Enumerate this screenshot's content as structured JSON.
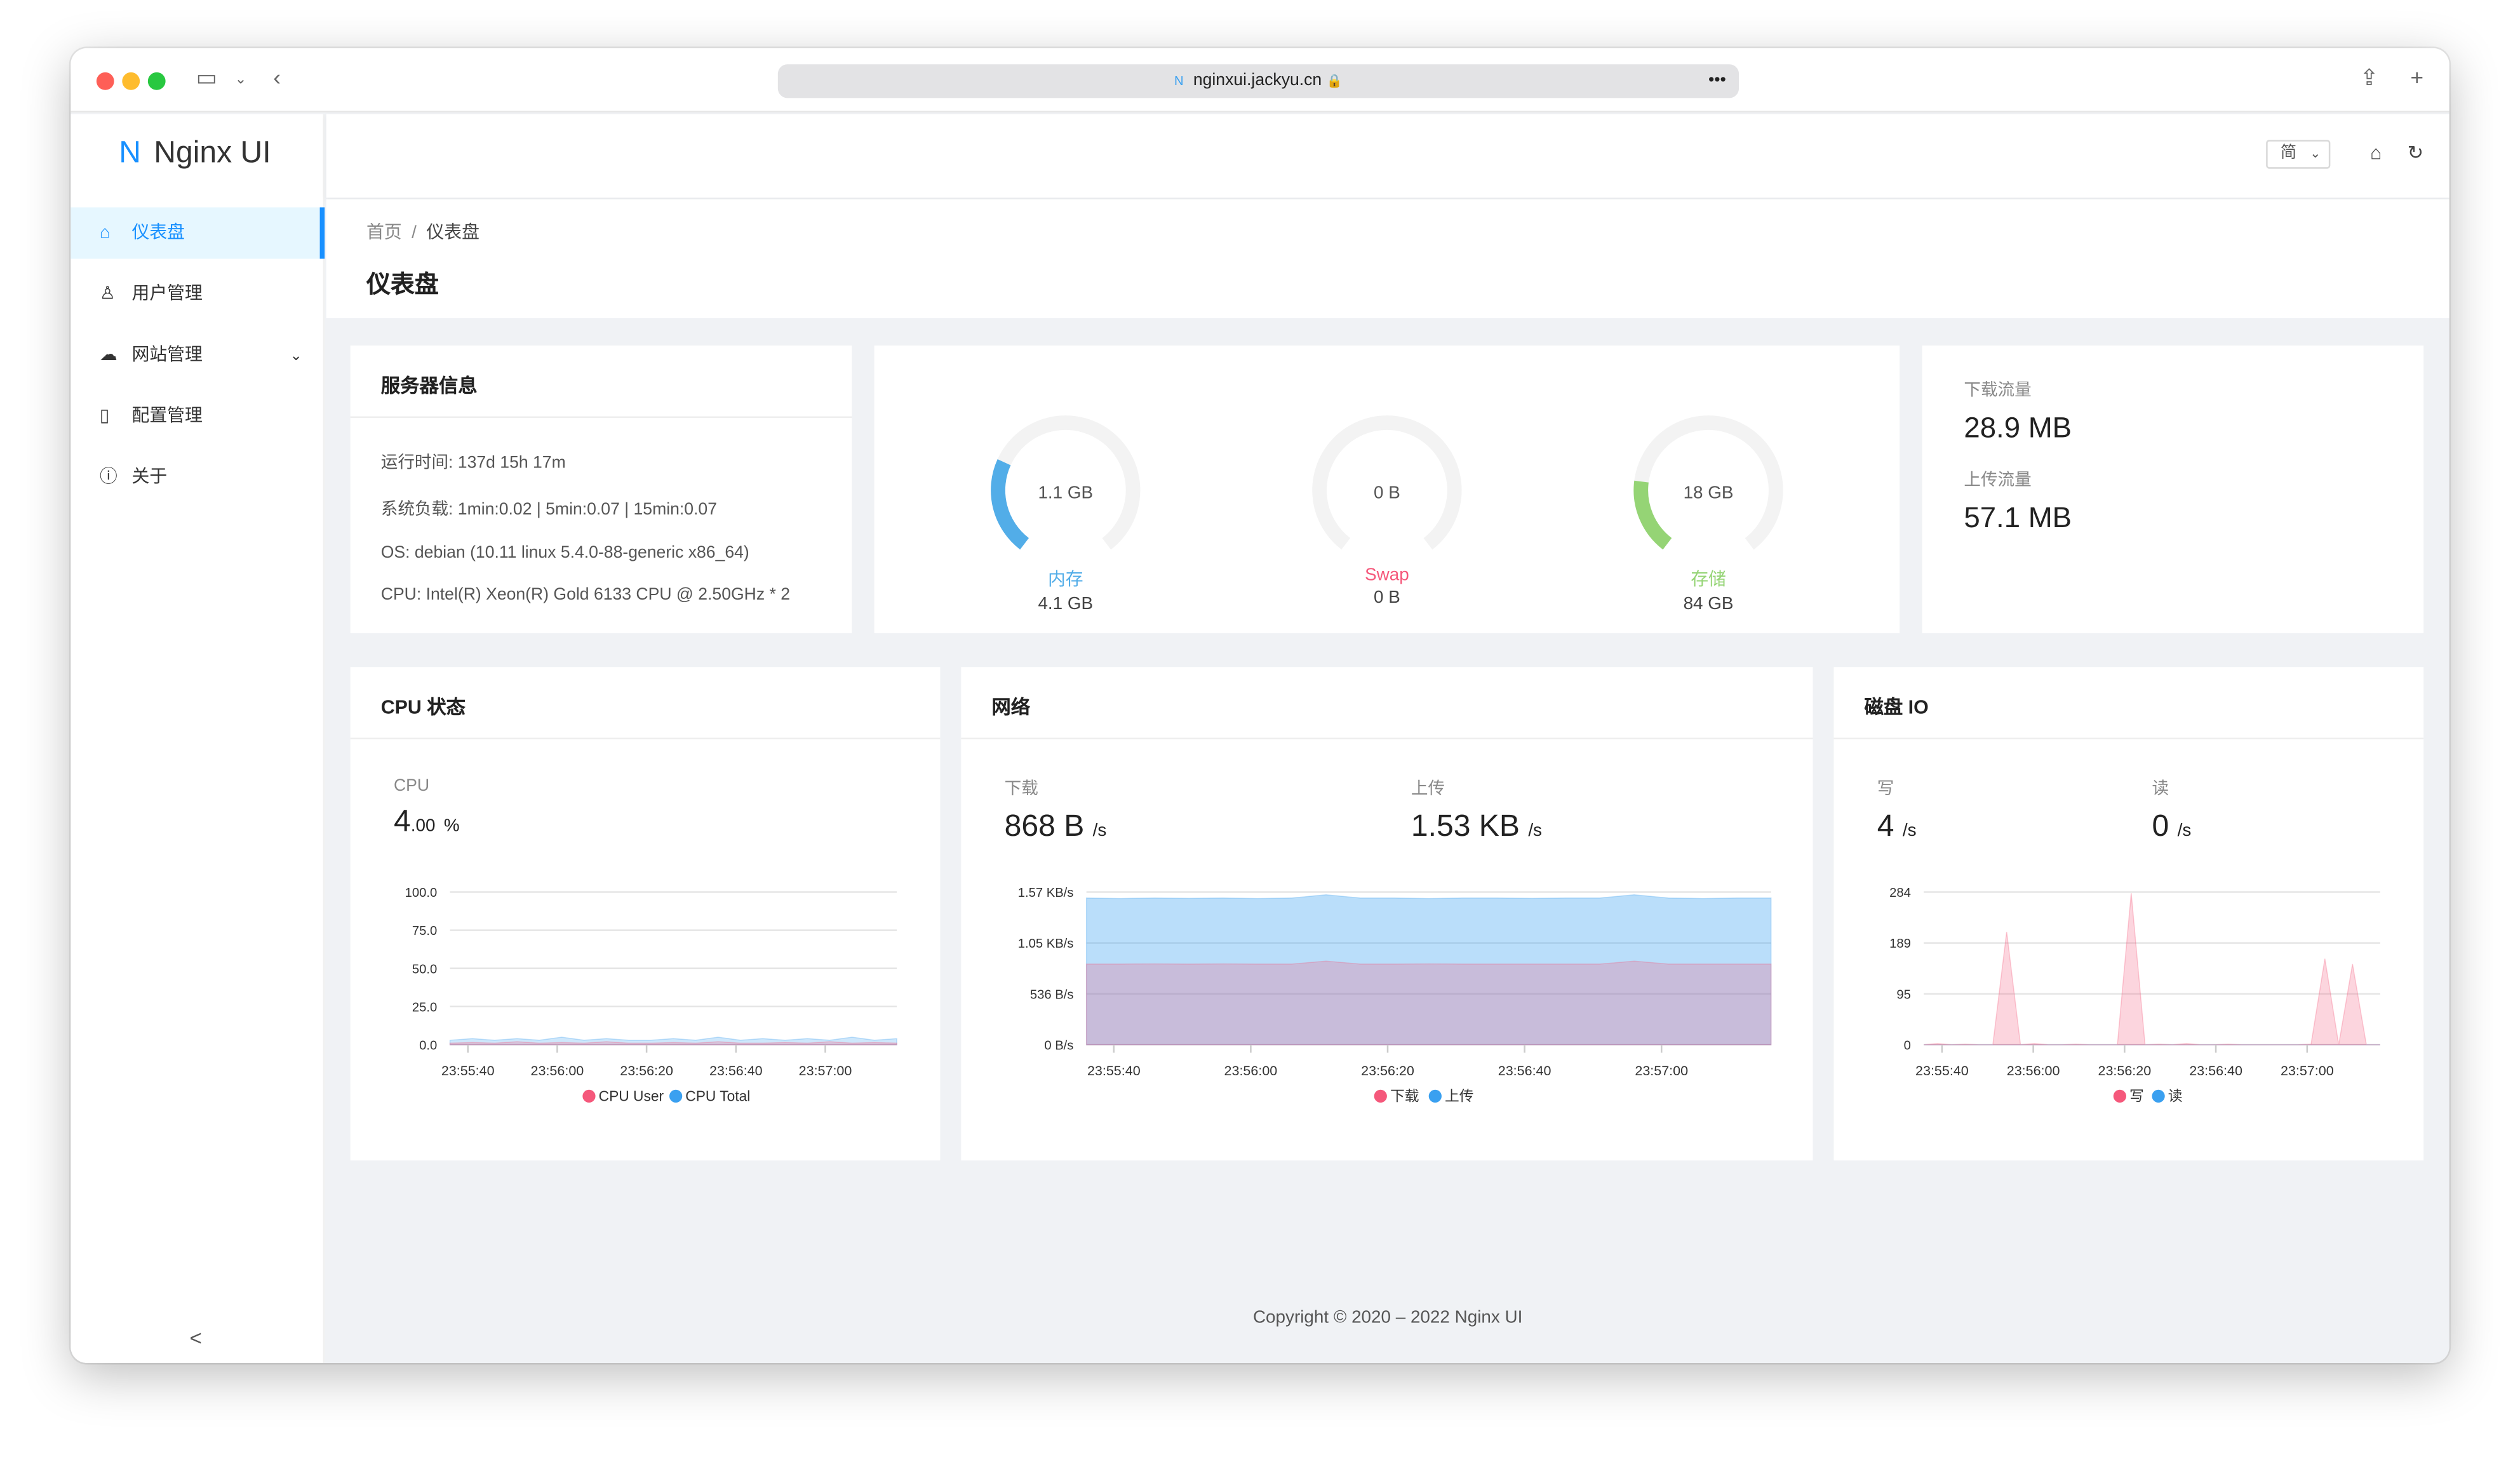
{
  "browser": {
    "url": "nginxui.jackyu.cn",
    "favicon": "N"
  },
  "app": {
    "logo_mark": "N",
    "name": "Nginx UI"
  },
  "sidebar": {
    "items": [
      {
        "label": "仪表盘",
        "icon": "home-icon",
        "active": true
      },
      {
        "label": "用户管理",
        "icon": "user-icon"
      },
      {
        "label": "网站管理",
        "icon": "cloud-icon",
        "has_submenu": true
      },
      {
        "label": "配置管理",
        "icon": "file-icon"
      },
      {
        "label": "关于",
        "icon": "info-icon"
      }
    ],
    "collapse": "<"
  },
  "header": {
    "language": "简"
  },
  "breadcrumb": [
    "首页",
    "/",
    "仪表盘"
  ],
  "page_title": "仪表盘",
  "server_info": {
    "title": "服务器信息",
    "lines": [
      "运行时间: 137d 15h 17m",
      "系统负载: 1min:0.02 | 5min:0.07 | 15min:0.07",
      "OS: debian (10.11 linux 5.4.0-88-generic x86_64)",
      "CPU: Intel(R) Xeon(R) Gold 6133 CPU @ 2.50GHz * 2"
    ]
  },
  "gauges": [
    {
      "center": "1.1 GB",
      "label": "内存",
      "total": "4.1 GB",
      "percent": 27,
      "color": "#52ade8"
    },
    {
      "center": "0 B",
      "label": "Swap",
      "total": "0 B",
      "percent": 0,
      "color": "#f5587b"
    },
    {
      "center": "18 GB",
      "label": "存储",
      "total": "84 GB",
      "percent": 21,
      "color": "#95d475"
    }
  ],
  "traffic": {
    "down_label": "下载流量",
    "down": "28.9 MB",
    "up_label": "上传流量",
    "up": "57.1 MB"
  },
  "cpu": {
    "title": "CPU 状态",
    "stat_label": "CPU",
    "value": "4",
    "decimals": ".00",
    "unit": "%"
  },
  "network": {
    "title": "网络",
    "down_label": "下载",
    "down": "868 B",
    "up_label": "上传",
    "up": "1.53 KB",
    "unit": "/s"
  },
  "disk": {
    "title": "磁盘 IO",
    "write_label": "写",
    "write": "4",
    "read_label": "读",
    "read": "0",
    "unit": "/s"
  },
  "chart_data": [
    {
      "type": "area",
      "name": "cpu",
      "yticks": [
        "100.0",
        "75.0",
        "50.0",
        "25.0",
        "0.0"
      ],
      "ylim": [
        0,
        100
      ],
      "xticks": [
        "23:55:40",
        "23:56:00",
        "23:56:20",
        "23:56:40",
        "23:57:00"
      ],
      "xlim": [
        0,
        100
      ],
      "series": [
        {
          "name": "CPU User",
          "color": "#f5587b",
          "values": [
            1,
            1.5,
            1,
            2,
            1,
            1.5,
            1,
            2,
            1,
            1,
            1.5,
            1,
            2,
            1,
            1,
            1.5,
            1,
            2,
            1,
            1.5,
            1
          ]
        },
        {
          "name": "CPU Total",
          "color": "#3aa0f0",
          "values": [
            3,
            4,
            3,
            4,
            3,
            5,
            3,
            4,
            3,
            3,
            4,
            3,
            5,
            3,
            4,
            3,
            4,
            3,
            5,
            3,
            4
          ]
        }
      ]
    },
    {
      "type": "area",
      "name": "network",
      "yticks": [
        "1.57 KB/s",
        "1.05 KB/s",
        "536 B/s",
        "0 B/s"
      ],
      "ylim": [
        0,
        1608
      ],
      "xticks": [
        "23:55:40",
        "23:56:00",
        "23:56:20",
        "23:56:40",
        "23:57:00"
      ],
      "xlim": [
        0,
        100
      ],
      "series": [
        {
          "name": "下载",
          "color": "#f5587b",
          "values": [
            850,
            850,
            852,
            850,
            851,
            850,
            850,
            880,
            850,
            850,
            851,
            850,
            850,
            850,
            850,
            850,
            880,
            850,
            850,
            850,
            850
          ]
        },
        {
          "name": "上传",
          "color": "#3aa0f0",
          "values": [
            1545,
            1540,
            1545,
            1542,
            1545,
            1540,
            1545,
            1580,
            1545,
            1545,
            1540,
            1545,
            1545,
            1542,
            1545,
            1545,
            1580,
            1545,
            1540,
            1545,
            1545
          ]
        }
      ]
    },
    {
      "type": "area",
      "name": "disk",
      "yticks": [
        "284",
        "189",
        "95",
        "0"
      ],
      "ylim": [
        0,
        284
      ],
      "xticks": [
        "23:55:40",
        "23:56:00",
        "23:56:20",
        "23:56:40",
        "23:57:00"
      ],
      "xlim": [
        0,
        100
      ],
      "series": [
        {
          "name": "写",
          "color": "#f5587b",
          "values": [
            0,
            2,
            0,
            1,
            0,
            0,
            210,
            0,
            2,
            0,
            0,
            1,
            0,
            0,
            0,
            282,
            0,
            1,
            0,
            2,
            0,
            0,
            1,
            0,
            0,
            0,
            0,
            0,
            1,
            160,
            0,
            150,
            0,
            0
          ]
        },
        {
          "name": "读",
          "color": "#3aa0f0",
          "values": [
            0,
            0,
            0,
            0,
            0,
            0,
            0,
            0,
            0,
            0,
            0,
            0,
            0,
            0,
            0,
            0,
            0,
            0,
            0,
            0,
            0,
            0,
            0,
            0,
            0,
            0,
            0,
            0,
            0,
            0,
            0,
            0,
            0,
            0
          ]
        }
      ]
    }
  ],
  "footer": "Copyright © 2020 – 2022 Nginx UI"
}
